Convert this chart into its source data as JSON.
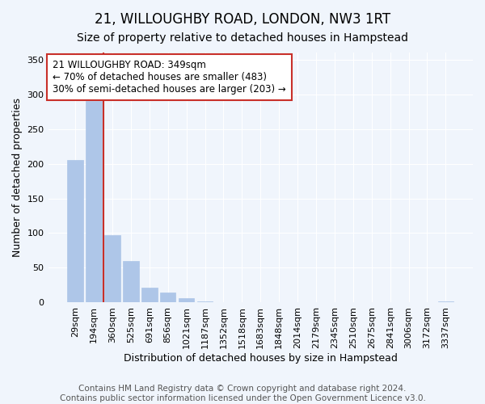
{
  "title": "21, WILLOUGHBY ROAD, LONDON, NW3 1RT",
  "subtitle": "Size of property relative to detached houses in Hampstead",
  "xlabel": "Distribution of detached houses by size in Hampstead",
  "ylabel": "Number of detached properties",
  "annotation_line1": "21 WILLOUGHBY ROAD: 349sqm",
  "annotation_line2": "← 70% of detached houses are smaller (483)",
  "annotation_line3": "30% of semi-detached houses are larger (203) →",
  "bar_labels": [
    "29sqm",
    "194sqm",
    "360sqm",
    "525sqm",
    "691sqm",
    "856sqm",
    "1021sqm",
    "1187sqm",
    "1352sqm",
    "1518sqm",
    "1683sqm",
    "1848sqm",
    "2014sqm",
    "2179sqm",
    "2345sqm",
    "2510sqm",
    "2675sqm",
    "2841sqm",
    "3006sqm",
    "3172sqm",
    "3337sqm"
  ],
  "bar_values": [
    205,
    290,
    97,
    60,
    21,
    14,
    6,
    2,
    0,
    0,
    0,
    0,
    0,
    0,
    0,
    0,
    0,
    0,
    0,
    0,
    2
  ],
  "bar_color_normal": "#aec6e8",
  "vline_color": "#c8302a",
  "vline_index": 1.5,
  "ylim": [
    0,
    360
  ],
  "yticks": [
    0,
    50,
    100,
    150,
    200,
    250,
    300,
    350
  ],
  "figsize": [
    6.0,
    5.0
  ],
  "dpi": 100,
  "footnote": "Contains HM Land Registry data © Crown copyright and database right 2024.\nContains public sector information licensed under the Open Government Licence v3.0.",
  "bg_color": "#f0f5fc",
  "annotation_box_color": "#ffffff",
  "annotation_box_edge": "#c8302a",
  "title_fontsize": 12,
  "subtitle_fontsize": 10,
  "axis_label_fontsize": 9,
  "tick_fontsize": 8,
  "annotation_fontsize": 8.5,
  "footnote_fontsize": 7.5,
  "grid_color": "#ffffff",
  "ylabel_fontsize": 9
}
